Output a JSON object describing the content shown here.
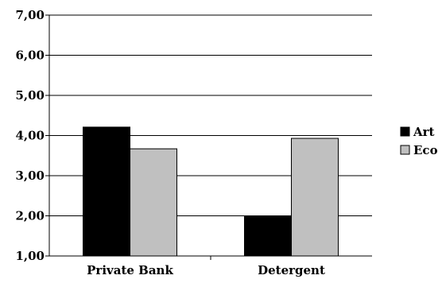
{
  "chart_data": {
    "type": "bar",
    "title": "",
    "xlabel": "",
    "ylabel": "",
    "categories": [
      "Private Bank",
      "Detergent"
    ],
    "series": [
      {
        "name": "Art",
        "values": [
          4.21,
          1.98
        ],
        "color": "#000000"
      },
      {
        "name": "Eco",
        "values": [
          3.67,
          3.93
        ],
        "color": "#c0c0c0"
      }
    ],
    "ylim": [
      1,
      7
    ],
    "y_ticks": [
      "1,00",
      "2,00",
      "3,00",
      "4,00",
      "5,00",
      "6,00",
      "7,00"
    ],
    "grid": true,
    "legend_position": "right"
  }
}
